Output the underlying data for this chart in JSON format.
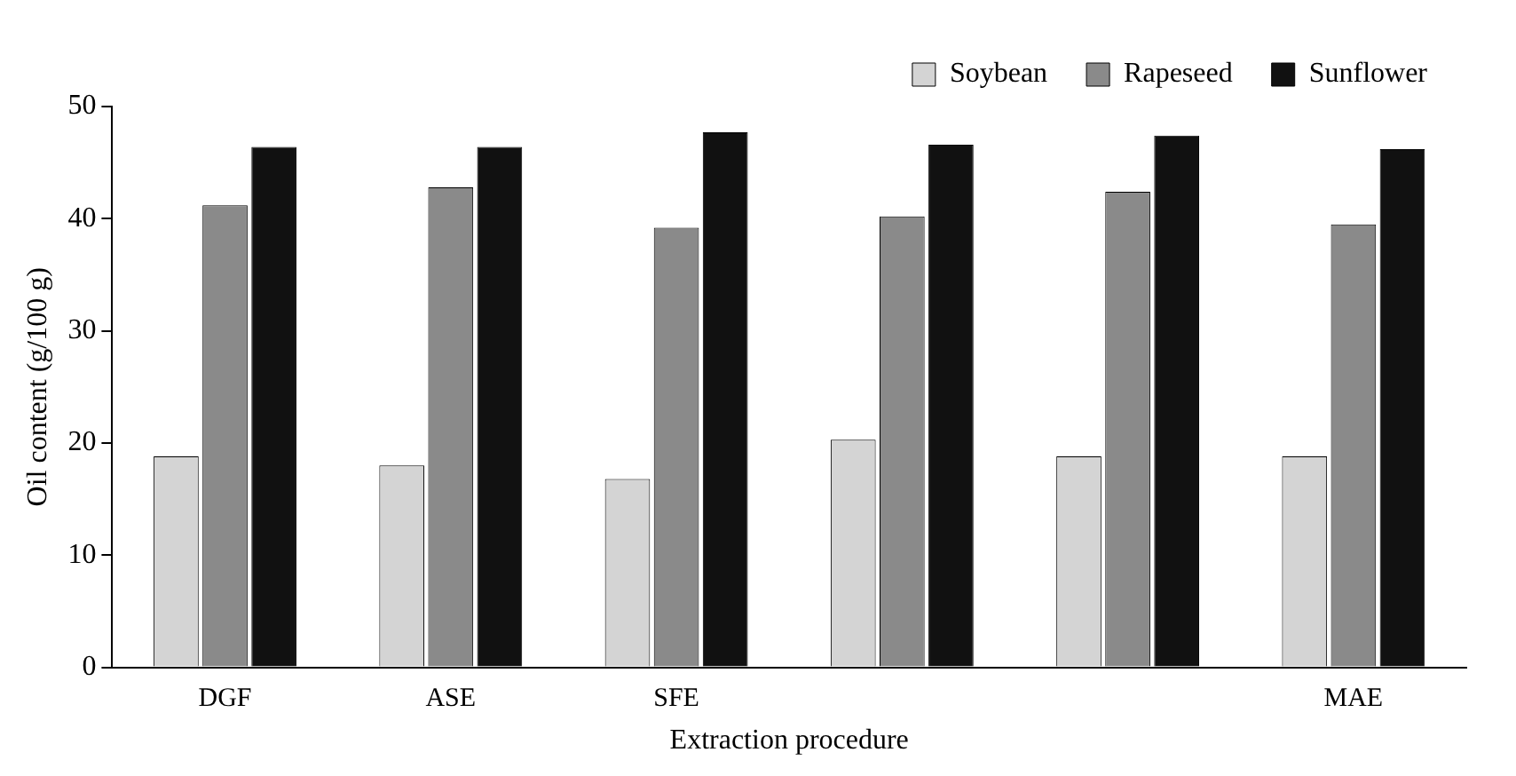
{
  "chart_data": {
    "type": "bar",
    "xlabel": "Extraction procedure",
    "ylabel": "Oil content (g/100 g)",
    "categories": [
      "DGF",
      "ASE",
      "SFE",
      null,
      null,
      "MAE"
    ],
    "series": [
      {
        "name": "Soybean",
        "color": "#d4d4d4",
        "values": [
          18.8,
          18.0,
          16.8,
          20.3,
          18.8,
          18.8
        ]
      },
      {
        "name": "Rapeseed",
        "color": "#8a8a8a",
        "values": [
          41.2,
          42.8,
          39.2,
          40.2,
          42.4,
          39.5
        ]
      },
      {
        "name": "Sunflower",
        "color": "#111111",
        "values": [
          46.4,
          46.4,
          47.7,
          46.6,
          47.4,
          46.2
        ]
      }
    ],
    "ylim": [
      0,
      50
    ],
    "yticks": [
      0,
      10,
      20,
      30,
      40,
      50
    ],
    "grid": false,
    "legend": "top right"
  }
}
